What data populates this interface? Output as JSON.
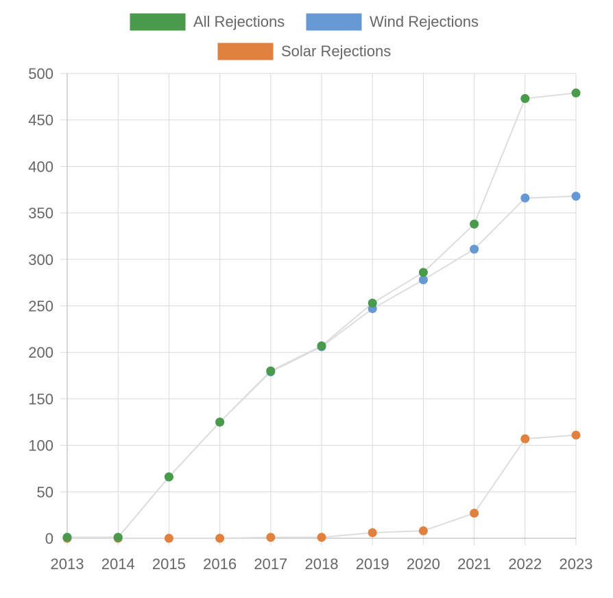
{
  "chart_data": {
    "type": "line",
    "categories": [
      "2013",
      "2014",
      "2015",
      "2016",
      "2017",
      "2018",
      "2019",
      "2020",
      "2021",
      "2022",
      "2023"
    ],
    "ylim": [
      0,
      500
    ],
    "yticks": [
      0,
      50,
      100,
      150,
      200,
      250,
      300,
      350,
      400,
      450,
      500
    ],
    "grid": true,
    "legend_position": "top",
    "series": [
      {
        "name": "All Rejections",
        "color": "#4a9a4c",
        "values": [
          1,
          1,
          66,
          125,
          180,
          207,
          253,
          286,
          338,
          473,
          479
        ]
      },
      {
        "name": "Wind Rejections",
        "color": "#6699d3",
        "values": [
          1,
          1,
          66,
          125,
          179,
          206,
          247,
          278,
          311,
          366,
          368
        ]
      },
      {
        "name": "Solar Rejections",
        "color": "#e0813f",
        "values": [
          0,
          0,
          0,
          0,
          1,
          1,
          6,
          8,
          27,
          107,
          111
        ]
      }
    ],
    "line_color": "#dddddd",
    "grid_color": "#d9d9d9",
    "axis_color": "#c8c8c8",
    "text_color": "#666666"
  }
}
